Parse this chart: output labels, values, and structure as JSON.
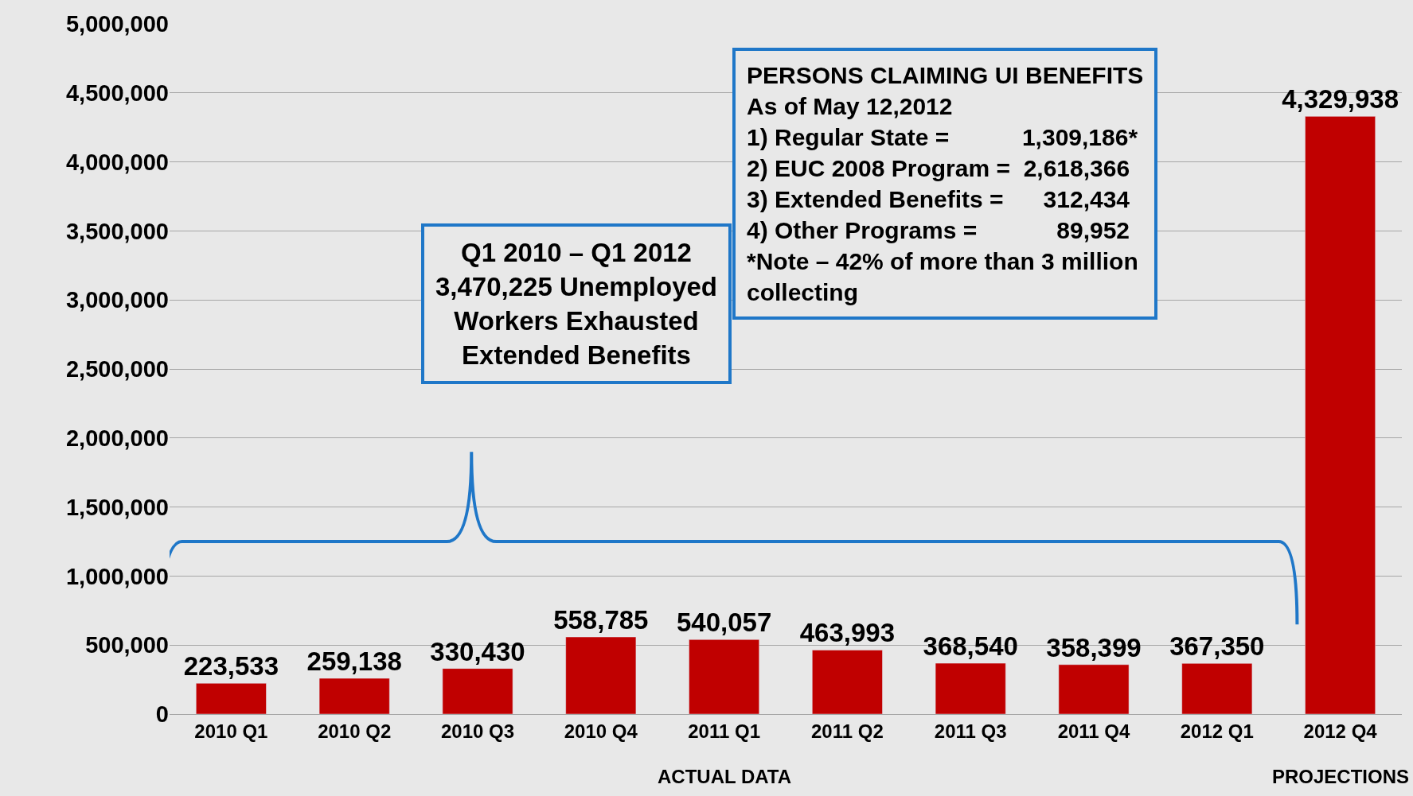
{
  "chart_data": {
    "type": "bar",
    "categories": [
      "2010 Q1",
      "2010 Q2",
      "2010 Q3",
      "2010 Q4",
      "2011 Q1",
      "2011 Q2",
      "2011 Q3",
      "2011 Q4",
      "2012 Q1",
      "2012 Q4"
    ],
    "values": [
      223533,
      259138,
      330430,
      558785,
      540057,
      463993,
      368540,
      358399,
      367350,
      4329938
    ],
    "color": "#c00000",
    "value_labels": [
      "223,533",
      "259,138",
      "330,430",
      "558,785",
      "540,057",
      "463,993",
      "368,540",
      "358,399",
      "367,350",
      "4,329,938"
    ],
    "ylim": [
      0,
      5000000
    ],
    "yticks": [
      0,
      {
        "value": 500000,
        "label": "500,000"
      },
      {
        "value": 1000000,
        "label": "1,000,000"
      },
      {
        "value": 1500000,
        "label": "1,500,000"
      },
      {
        "value": 2000000,
        "label": "2,000,000"
      },
      {
        "value": 2500000,
        "label": "2,500,000"
      },
      {
        "value": 3000000,
        "label": "3,000,000"
      },
      {
        "value": 3500000,
        "label": "3,500,000"
      },
      {
        "value": 4000000,
        "label": "4,000,000"
      },
      {
        "value": 4500000,
        "label": "4,500,000"
      },
      {
        "value": 5000000,
        "label": "5,000,000"
      }
    ],
    "grid": "y",
    "annotations": [
      "Q1 2010 – Q1 2012\n3,470,225 Unemployed\nWorkers Exhausted\nExtended Benefits",
      "PERSONS CLAIMING UI BENEFITS\nAs of May 12,2012\n1) Regular State =           1,309,186*\n2) EUC 2008 Program =  2,618,366\n3) Extended Benefits =      312,434\n4) Other Programs =            89,952\n*Note – 42% of more than 3 million\ncollecting",
      "ACTUAL DATA",
      "PROJECTIONS"
    ]
  }
}
